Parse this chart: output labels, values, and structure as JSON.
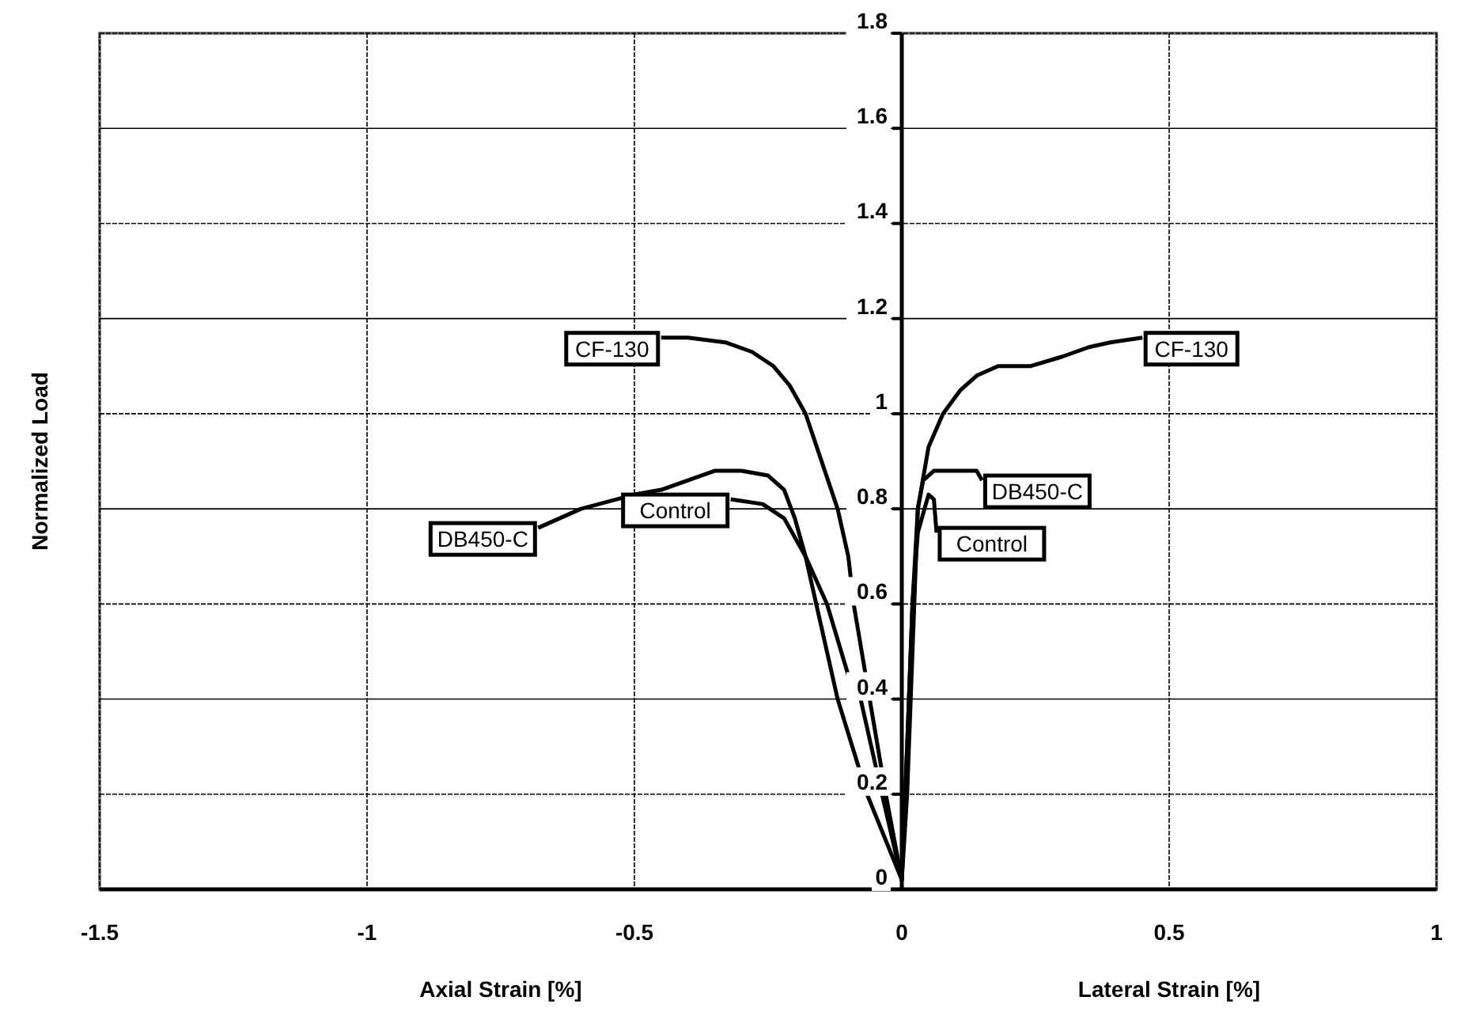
{
  "chart_data": {
    "type": "line",
    "xlabel": "Axial Strain [%]",
    "ylabel": "Normalized Load",
    "annotations": [
      "Lateral Strain [%]"
    ],
    "xlim": [
      -1.5,
      1
    ],
    "ylim": [
      0,
      1.8
    ],
    "xticks": [
      -1.5,
      -1,
      -0.5,
      0,
      0.5,
      1
    ],
    "yticks": [
      0,
      0.2,
      0.4,
      0.6,
      0.8,
      1,
      1.2,
      1.4,
      1.6,
      1.8
    ],
    "grid": true,
    "marker": "none",
    "line_style": "solid",
    "series": [
      {
        "name": "CF-130",
        "color": "#000000",
        "x": [
          -0.45,
          -0.4,
          -0.33,
          -0.28,
          -0.24,
          -0.21,
          -0.18,
          -0.15,
          -0.12,
          -0.1,
          -0.09,
          -0.06,
          -0.03,
          0,
          0.01,
          0.02,
          0.03,
          0.05,
          0.077,
          0.11,
          0.14,
          0.18,
          0.24,
          0.3,
          0.35,
          0.39,
          0.45
        ],
        "values": [
          1.16,
          1.16,
          1.15,
          1.13,
          1.1,
          1.06,
          1.0,
          0.9,
          0.8,
          0.7,
          0.6,
          0.4,
          0.2,
          0.02,
          0.2,
          0.5,
          0.8,
          0.93,
          1.0,
          1.05,
          1.08,
          1.1,
          1.1,
          1.12,
          1.14,
          1.15,
          1.16
        ]
      },
      {
        "name": "DB450-C",
        "color": "#000000",
        "x": [
          -0.68,
          -0.6,
          -0.5,
          -0.45,
          -0.35,
          -0.3,
          -0.25,
          -0.22,
          -0.2,
          -0.18,
          -0.16,
          -0.12,
          -0.065,
          0,
          0.01,
          0.02,
          0.03,
          0.04,
          0.06,
          0.1,
          0.14,
          0.15
        ],
        "values": [
          0.76,
          0.8,
          0.83,
          0.84,
          0.88,
          0.88,
          0.87,
          0.84,
          0.78,
          0.7,
          0.6,
          0.4,
          0.2,
          0.02,
          0.3,
          0.6,
          0.8,
          0.86,
          0.88,
          0.88,
          0.88,
          0.86
        ]
      },
      {
        "name": "Control",
        "color": "#000000",
        "x": [
          -0.32,
          -0.26,
          -0.22,
          -0.18,
          -0.14,
          -0.1,
          -0.077,
          -0.037,
          0,
          0.01,
          0.02,
          0.03,
          0.05,
          0.06,
          0.065
        ],
        "values": [
          0.82,
          0.81,
          0.78,
          0.7,
          0.6,
          0.45,
          0.4,
          0.2,
          0.02,
          0.3,
          0.6,
          0.75,
          0.83,
          0.82,
          0.75
        ]
      }
    ]
  }
}
